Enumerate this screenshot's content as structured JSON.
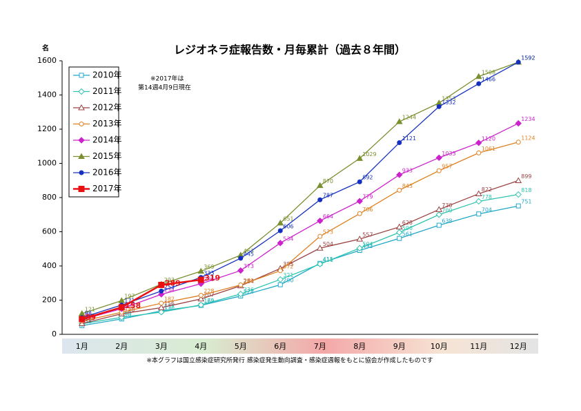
{
  "chart_data": {
    "type": "line",
    "title": "レジオネラ症報告数・月毎累計（過去８年間）",
    "y_unit": "名",
    "annotation": [
      "※2017年は",
      "第14週4月9日現在"
    ],
    "footnote": "※本グラフは国立感染症研究所発行 感染症発生動向調査・感染症週報をもとに協会が作成したものです",
    "categories": [
      "1月",
      "2月",
      "3月",
      "4月",
      "5月",
      "6月",
      "7月",
      "8月",
      "9月",
      "10月",
      "11月",
      "12月"
    ],
    "ylim": [
      0,
      1600
    ],
    "yticks": [
      0,
      200,
      400,
      600,
      800,
      1000,
      1200,
      1400,
      1600
    ],
    "grid": false,
    "legend": "top-left",
    "series": [
      {
        "name": "2010年",
        "color": "#1fa8c8",
        "marker": "square",
        "filled": false,
        "values": [
          51,
          90,
          137,
          169,
          224,
          290,
          415,
          491,
          561,
          638,
          704,
          751
        ]
      },
      {
        "name": "2011年",
        "color": "#2ec4b0",
        "marker": "diamond",
        "filled": false,
        "values": [
          62,
          99,
          130,
          172,
          236,
          321,
          411,
          504,
          596,
          700,
          778,
          818
        ]
      },
      {
        "name": "2012年",
        "color": "#9a4040",
        "marker": "triangle",
        "filled": false,
        "values": [
          63,
          120,
          156,
          207,
          284,
          385,
          504,
          557,
          628,
          730,
          822,
          899
        ]
      },
      {
        "name": "2013年",
        "color": "#e08020",
        "marker": "circle",
        "filled": false,
        "values": [
          77,
          129,
          182,
          228,
          289,
          372,
          573,
          706,
          843,
          957,
          1061,
          1124
        ]
      },
      {
        "name": "2014年",
        "color": "#cc22cc",
        "marker": "diamond",
        "filled": true,
        "values": [
          86,
          150,
          234,
          296,
          373,
          534,
          664,
          779,
          933,
          1033,
          1120,
          1234
        ]
      },
      {
        "name": "2015年",
        "color": "#7a9030",
        "marker": "triangle",
        "filled": true,
        "values": [
          121,
          197,
          293,
          369,
          463,
          651,
          870,
          1029,
          1244,
          1353,
          1508,
          1592
        ]
      },
      {
        "name": "2016年",
        "color": "#1530c0",
        "marker": "circle",
        "filled": true,
        "values": [
          98,
          171,
          253,
          333,
          445,
          606,
          787,
          892,
          1121,
          1332,
          1466,
          1592
        ]
      },
      {
        "name": "2017年",
        "color": "#e81010",
        "marker": "square",
        "filled": true,
        "values": [
          89,
          158,
          289,
          319,
          null,
          null,
          null,
          null,
          null,
          null,
          null,
          null
        ]
      }
    ]
  }
}
